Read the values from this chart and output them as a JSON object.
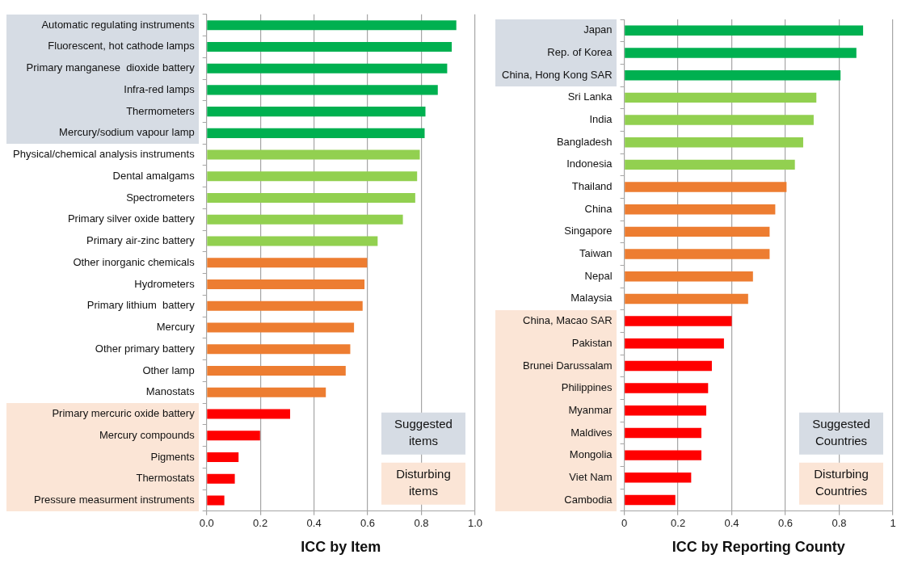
{
  "chart_data": [
    {
      "type": "bar",
      "orientation": "horizontal",
      "xlabel": "ICC by Item",
      "categories": [
        "Automatic regulating instruments",
        "Fluorescent, hot cathode lamps",
        "Primary manganese  dioxide battery",
        "Infra-red lamps",
        "Thermometers",
        "Mercury/sodium vapour lamp",
        "Physical/chemical analysis instruments",
        "Dental amalgams",
        "Spectrometers",
        "Primary silver oxide battery",
        "Primary air-zinc battery",
        "Other inorganic chemicals",
        "Hydrometers",
        "Primary lithium  battery",
        "Mercury",
        "Other primary battery",
        "Other lamp",
        "Manostats",
        "Primary mercuric oxide battery",
        "Mercury compounds",
        "Pigments",
        "Thermostats",
        "Pressure measurment instruments"
      ],
      "values": [
        0.93,
        0.913,
        0.896,
        0.861,
        0.815,
        0.812,
        0.794,
        0.784,
        0.777,
        0.731,
        0.637,
        0.598,
        0.588,
        0.581,
        0.549,
        0.535,
        0.518,
        0.444,
        0.311,
        0.199,
        0.119,
        0.105,
        0.066
      ],
      "colors": [
        "#00b050",
        "#00b050",
        "#00b050",
        "#00b050",
        "#00b050",
        "#00b050",
        "#92d050",
        "#92d050",
        "#92d050",
        "#92d050",
        "#92d050",
        "#ed7d31",
        "#ed7d31",
        "#ed7d31",
        "#ed7d31",
        "#ed7d31",
        "#ed7d31",
        "#ed7d31",
        "#ff0000",
        "#ff0000",
        "#ff0000",
        "#ff0000",
        "#ff0000"
      ],
      "xlim": [
        0,
        1
      ],
      "xticks": [
        {
          "value": 0,
          "label": "0.0"
        },
        0.2,
        0.4,
        0.6,
        0.8,
        {
          "value": 1,
          "label": "1.0"
        }
      ],
      "grid": "x",
      "annotations": [
        "Suggested items",
        "Disturbing items"
      ]
    },
    {
      "type": "bar",
      "orientation": "horizontal",
      "xlabel": "ICC by Reporting County",
      "categories": [
        "Japan",
        "Rep. of Korea",
        "China, Hong Kong SAR",
        "Sri Lanka",
        "India",
        "Bangladesh",
        "Indonesia",
        "Thailand",
        "China",
        "Singapore",
        "Taiwan",
        "Nepal",
        "Malaysia",
        "China, Macao SAR",
        "Pakistan",
        "Brunei Darussalam",
        "Philippines",
        "Myanmar",
        "Maldives",
        "Mongolia",
        "Viet Nam",
        "Cambodia"
      ],
      "values": [
        0.889,
        0.864,
        0.805,
        0.715,
        0.705,
        0.666,
        0.635,
        0.604,
        0.562,
        0.541,
        0.541,
        0.479,
        0.461,
        0.4,
        0.371,
        0.326,
        0.312,
        0.305,
        0.287,
        0.287,
        0.249,
        0.19
      ],
      "colors": [
        "#00b050",
        "#00b050",
        "#00b050",
        "#92d050",
        "#92d050",
        "#92d050",
        "#92d050",
        "#ed7d31",
        "#ed7d31",
        "#ed7d31",
        "#ed7d31",
        "#ed7d31",
        "#ed7d31",
        "#ff0000",
        "#ff0000",
        "#ff0000",
        "#ff0000",
        "#ff0000",
        "#ff0000",
        "#ff0000",
        "#ff0000",
        "#ff0000"
      ],
      "xlim": [
        0,
        1
      ],
      "xticks": [
        0,
        0.2,
        0.4,
        0.6,
        0.8,
        1
      ],
      "grid": "x",
      "annotations": [
        "Suggested Countries",
        "Disturbing Countries"
      ]
    }
  ]
}
